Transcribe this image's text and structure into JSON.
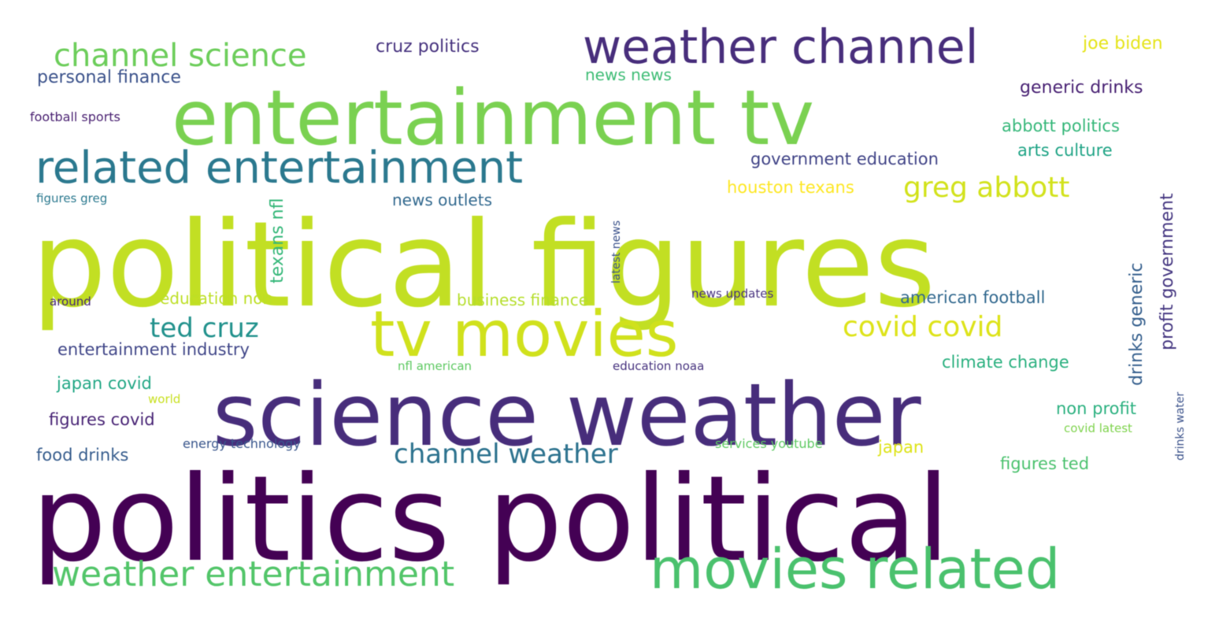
{
  "wordcloud": {
    "words": [
      {
        "text": "politics political",
        "color": "#440154"
      },
      {
        "text": "political figures",
        "color": "#c2df23"
      },
      {
        "text": "science weather",
        "color": "#472d7b"
      },
      {
        "text": "entertainment tv",
        "color": "#7ad151"
      },
      {
        "text": "tv movies",
        "color": "#d0e11c"
      },
      {
        "text": "movies related",
        "color": "#4ac16d"
      },
      {
        "text": "related entertainment",
        "color": "#2a788e"
      },
      {
        "text": "weather channel",
        "color": "#472d7b"
      },
      {
        "text": "weather entertainment",
        "color": "#52c569"
      },
      {
        "text": "channel science",
        "color": "#6ccd5a"
      },
      {
        "text": "channel weather",
        "color": "#2c728e"
      },
      {
        "text": "greg abbott",
        "color": "#d2e21b"
      },
      {
        "text": "covid covid",
        "color": "#dde318"
      },
      {
        "text": "ted cruz",
        "color": "#21918c"
      },
      {
        "text": "cruz politics",
        "color": "#46327e"
      },
      {
        "text": "joe biden",
        "color": "#e5e419"
      },
      {
        "text": "personal finance",
        "color": "#3b528b"
      },
      {
        "text": "news news",
        "color": "#3dbc74"
      },
      {
        "text": "generic drinks",
        "color": "#482173"
      },
      {
        "text": "football sports",
        "color": "#481f70"
      },
      {
        "text": "abbott politics",
        "color": "#35b779"
      },
      {
        "text": "arts culture",
        "color": "#20a486"
      },
      {
        "text": "government education",
        "color": "#414487"
      },
      {
        "text": "houston texans",
        "color": "#fde725"
      },
      {
        "text": "news outlets",
        "color": "#31688e"
      },
      {
        "text": "figures greg",
        "color": "#2a788e"
      },
      {
        "text": "texans nfl",
        "color": "#35b779"
      },
      {
        "text": "latest news",
        "color": "#3b528b"
      },
      {
        "text": "education non",
        "color": "#bddf26"
      },
      {
        "text": "business finance",
        "color": "#b5de2b"
      },
      {
        "text": "news updates",
        "color": "#46307e"
      },
      {
        "text": "american football",
        "color": "#31688e"
      },
      {
        "text": "around",
        "color": "#482878"
      },
      {
        "text": "entertainment industry",
        "color": "#404688"
      },
      {
        "text": "nfl american",
        "color": "#5ec962"
      },
      {
        "text": "education noaa",
        "color": "#46327e"
      },
      {
        "text": "climate change",
        "color": "#2ab07f"
      },
      {
        "text": "japan covid",
        "color": "#22a785"
      },
      {
        "text": "world",
        "color": "#c8e020"
      },
      {
        "text": "figures covid",
        "color": "#482475"
      },
      {
        "text": "non profit",
        "color": "#2ab07f"
      },
      {
        "text": "covid latest",
        "color": "#7fd34e"
      },
      {
        "text": "food drinks",
        "color": "#365c8d"
      },
      {
        "text": "energy technology",
        "color": "#39568c"
      },
      {
        "text": "services youtube",
        "color": "#5ec962"
      },
      {
        "text": "japan",
        "color": "#dde318"
      },
      {
        "text": "figures ted",
        "color": "#4ac16d"
      },
      {
        "text": "drinks generic",
        "color": "#355f8d"
      },
      {
        "text": "profit government",
        "color": "#453781"
      },
      {
        "text": "drinks water",
        "color": "#3b528b"
      }
    ]
  }
}
